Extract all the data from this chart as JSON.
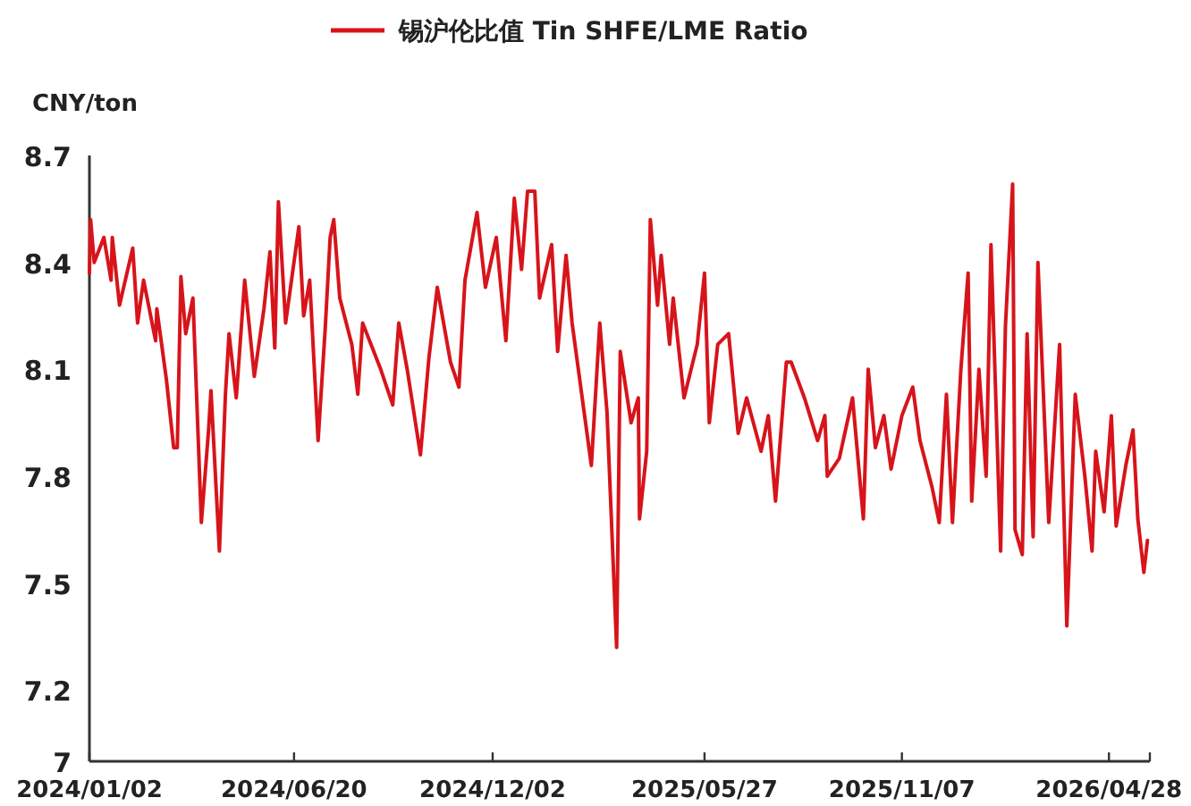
{
  "chart_data": {
    "type": "line",
    "ylabel": "CNY/ton",
    "legend": "top",
    "grid": false,
    "line_style": "solid",
    "ylim": [
      7,
      8.7
    ],
    "yticks": [
      7,
      7.2,
      7.5,
      7.8,
      8.1,
      8.4,
      8.7
    ],
    "xlim": [
      "2024-01-02",
      "2026-06-01"
    ],
    "xticks": [
      {
        "value": "2024-01-02",
        "label": "2024/01/02"
      },
      {
        "value": "2024-06-20",
        "label": "2024/06/20"
      },
      {
        "value": "2024-12-02",
        "label": "2024/12/02"
      },
      {
        "value": "2025-05-27",
        "label": "2025/05/27"
      },
      {
        "value": "2025-11-07",
        "label": "2025/11/07"
      },
      {
        "value": "2026-04-28",
        "label": "2026/04/28"
      },
      {
        "value": "2026-06-01",
        "label": null
      }
    ],
    "x": [
      "2024-01-02",
      "2024-01-03",
      "2024-01-06",
      "2024-01-14",
      "2024-01-20",
      "2024-01-21",
      "2024-01-27",
      "2024-02-07",
      "2024-02-11",
      "2024-02-16",
      "2024-02-26",
      "2024-02-27",
      "2024-03-06",
      "2024-03-12",
      "2024-03-15",
      "2024-03-18",
      "2024-03-22",
      "2024-03-28",
      "2024-04-04",
      "2024-04-10",
      "2024-04-12",
      "2024-04-19",
      "2024-04-24",
      "2024-04-27",
      "2024-05-03",
      "2024-05-10",
      "2024-05-18",
      "2024-05-26",
      "2024-05-31",
      "2024-06-04",
      "2024-06-07",
      "2024-06-13",
      "2024-06-24",
      "2024-06-28",
      "2024-07-03",
      "2024-07-10",
      "2024-07-16",
      "2024-07-20",
      "2024-07-23",
      "2024-07-28",
      "2024-08-07",
      "2024-08-12",
      "2024-08-16",
      "2024-08-31",
      "2024-09-10",
      "2024-09-15",
      "2024-09-22",
      "2024-10-03",
      "2024-10-10",
      "2024-10-17",
      "2024-10-28",
      "2024-11-04",
      "2024-11-09",
      "2024-11-19",
      "2024-11-26",
      "2024-12-05",
      "2024-12-13",
      "2024-12-20",
      "2024-12-26",
      "2024-12-31",
      "2025-01-06",
      "2025-01-10",
      "2025-01-20",
      "2025-01-25",
      "2025-02-01",
      "2025-02-06",
      "2025-02-16",
      "2025-02-22",
      "2025-03-01",
      "2025-03-07",
      "2025-03-15",
      "2025-03-18",
      "2025-03-27",
      "2025-04-02",
      "2025-04-03",
      "2025-04-09",
      "2025-04-12",
      "2025-04-18",
      "2025-04-21",
      "2025-04-28",
      "2025-05-01",
      "2025-05-10",
      "2025-05-21",
      "2025-05-27",
      "2025-05-31",
      "2025-06-07",
      "2025-06-16",
      "2025-06-24",
      "2025-07-01",
      "2025-07-13",
      "2025-07-19",
      "2025-07-25",
      "2025-08-03",
      "2025-08-07",
      "2025-08-18",
      "2025-08-29",
      "2025-09-04",
      "2025-09-06",
      "2025-09-16",
      "2025-09-27",
      "2025-10-06",
      "2025-10-10",
      "2025-10-16",
      "2025-10-23",
      "2025-10-29",
      "2025-11-07",
      "2025-11-16",
      "2025-11-22",
      "2025-12-02",
      "2025-12-08",
      "2025-12-14",
      "2025-12-19",
      "2025-12-26",
      "2026-01-01",
      "2026-01-04",
      "2026-01-10",
      "2026-01-16",
      "2026-01-20",
      "2026-01-28",
      "2026-02-01",
      "2026-02-07",
      "2026-02-09",
      "2026-02-15",
      "2026-02-19",
      "2026-02-24",
      "2026-02-28",
      "2026-03-09",
      "2026-03-18",
      "2026-03-24",
      "2026-03-31",
      "2026-04-08",
      "2026-04-14",
      "2026-04-17",
      "2026-04-24",
      "2026-04-30",
      "2026-05-04",
      "2026-05-12",
      "2026-05-18",
      "2026-05-22",
      "2026-05-27",
      "2026-05-30"
    ],
    "series": [
      {
        "name": "锡沪伦比值 Tin SHFE/LME Ratio",
        "color": "#d7141b",
        "values": [
          8.37,
          8.52,
          8.4,
          8.47,
          8.35,
          8.47,
          8.28,
          8.44,
          8.23,
          8.35,
          8.18,
          8.27,
          8.07,
          7.88,
          7.88,
          8.36,
          8.2,
          8.3,
          7.67,
          7.93,
          8.04,
          7.59,
          8.03,
          8.2,
          8.02,
          8.35,
          8.08,
          8.27,
          8.43,
          8.16,
          8.57,
          8.23,
          8.5,
          8.25,
          8.35,
          7.9,
          8.22,
          8.47,
          8.52,
          8.3,
          8.17,
          8.03,
          8.23,
          8.1,
          8.0,
          8.23,
          8.1,
          7.86,
          8.13,
          8.33,
          8.12,
          8.05,
          8.35,
          8.54,
          8.33,
          8.47,
          8.18,
          8.58,
          8.38,
          8.6,
          8.6,
          8.3,
          8.45,
          8.15,
          8.42,
          8.23,
          7.98,
          7.83,
          8.23,
          7.98,
          7.32,
          8.15,
          7.95,
          8.02,
          7.68,
          7.87,
          8.52,
          8.28,
          8.42,
          8.17,
          8.3,
          8.02,
          8.17,
          8.37,
          7.95,
          8.17,
          8.2,
          7.92,
          8.02,
          7.87,
          7.97,
          7.73,
          8.12,
          8.12,
          8.02,
          7.9,
          7.97,
          7.8,
          7.85,
          8.02,
          7.68,
          8.1,
          7.88,
          7.97,
          7.82,
          7.97,
          8.05,
          7.9,
          7.77,
          7.67,
          8.03,
          7.67,
          8.1,
          8.37,
          7.73,
          8.1,
          7.8,
          8.45,
          7.59,
          8.22,
          8.62,
          7.65,
          7.58,
          8.2,
          7.63,
          8.4,
          7.67,
          8.17,
          7.38,
          8.03,
          7.8,
          7.59,
          7.87,
          7.7,
          7.97,
          7.66,
          7.83,
          7.93,
          7.68,
          7.53,
          7.62
        ]
      }
    ]
  }
}
